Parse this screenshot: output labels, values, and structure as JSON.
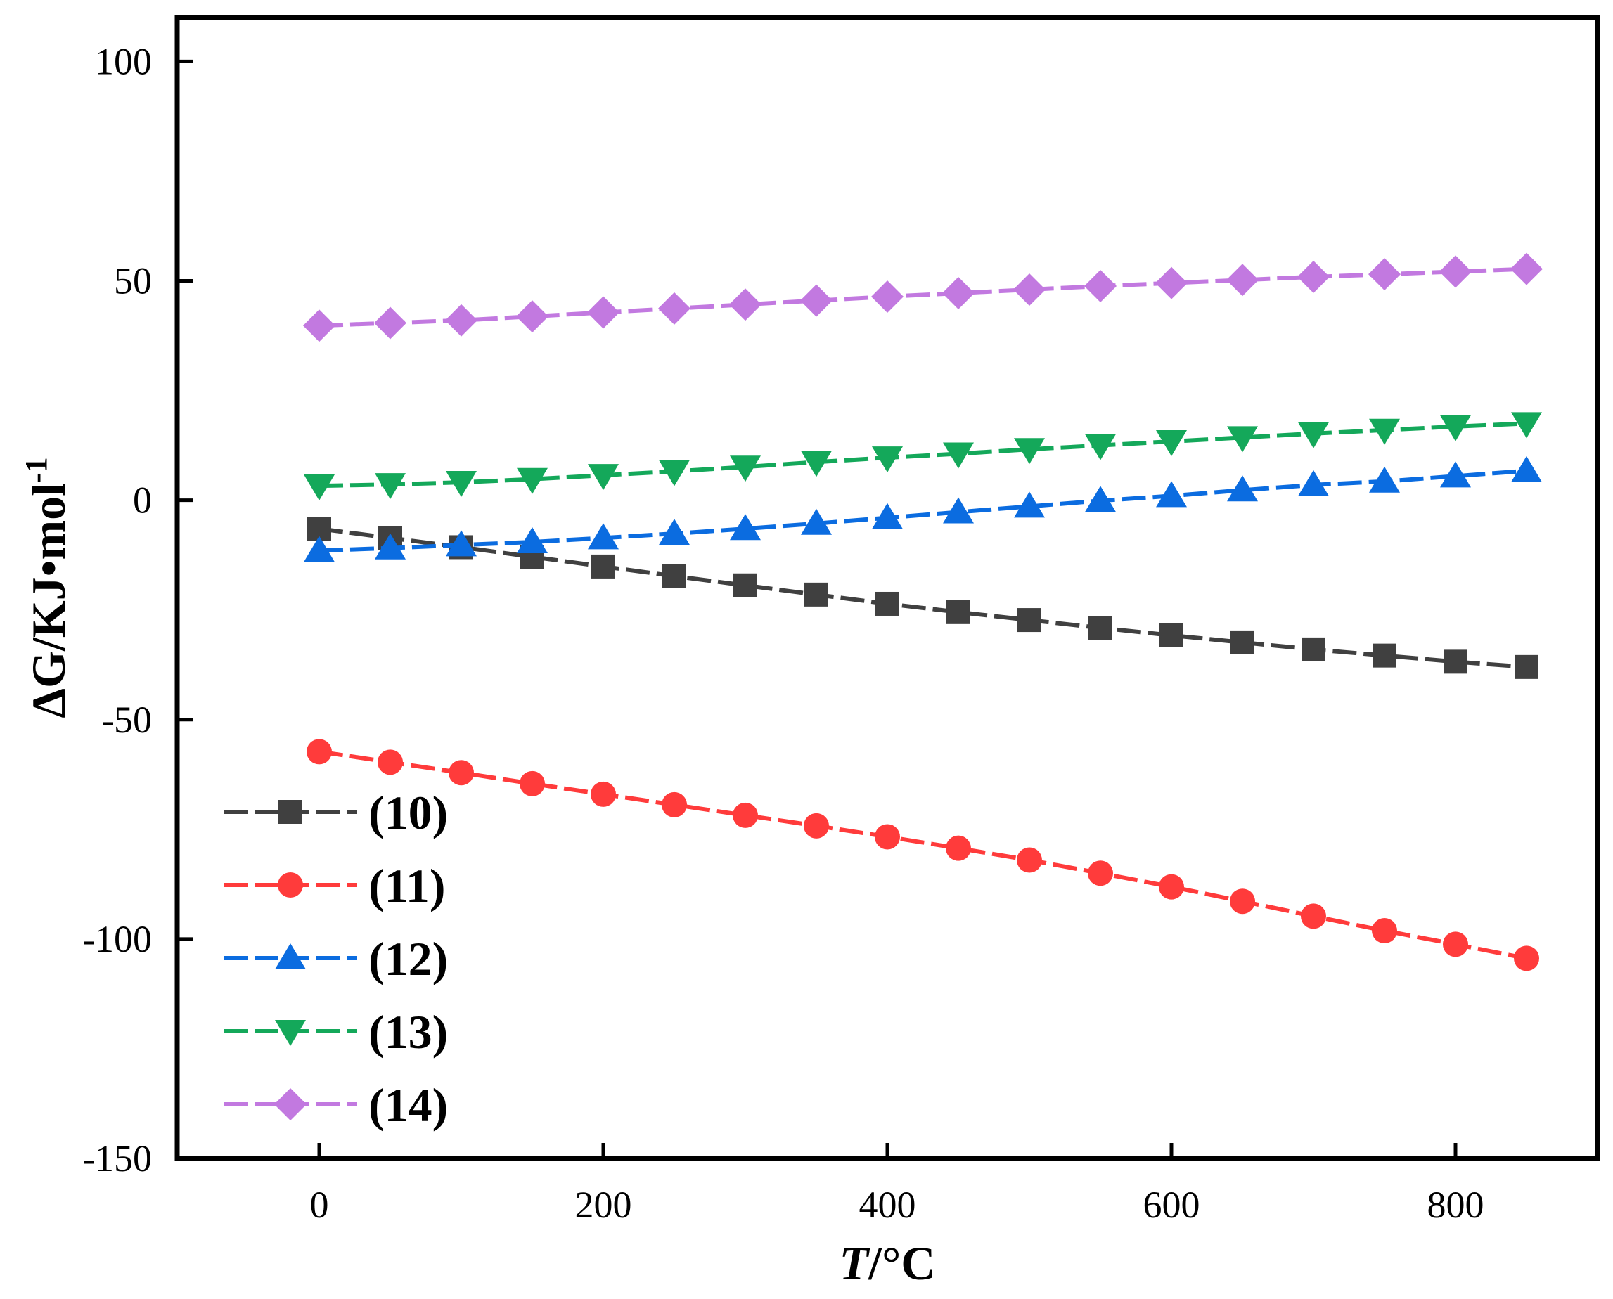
{
  "chart_data": {
    "type": "line",
    "title": "",
    "xlabel_italic": "T",
    "xlabel_rest": "/°C",
    "ylabel_main": "ΔG/KJ•mol",
    "ylabel_sup": "-1",
    "xlim": [
      -100,
      900
    ],
    "ylim": [
      -150,
      110
    ],
    "xticks": [
      0,
      200,
      400,
      600,
      800
    ],
    "yticks": [
      -150,
      -100,
      -50,
      0,
      50,
      100
    ],
    "x": [
      0,
      50,
      100,
      150,
      200,
      250,
      300,
      350,
      400,
      450,
      500,
      550,
      600,
      650,
      700,
      750,
      800,
      850
    ],
    "legend_position": "bottom-left",
    "series": [
      {
        "name": "(10)",
        "color": "#404040",
        "marker": "square",
        "values": [
          -6.5,
          -8.6,
          -10.7,
          -12.9,
          -15.1,
          -17.3,
          -19.4,
          -21.5,
          -23.6,
          -25.5,
          -27.3,
          -29.1,
          -30.8,
          -32.4,
          -34.0,
          -35.4,
          -36.8,
          -38.0
        ]
      },
      {
        "name": "(11)",
        "color": "#ff3b3b",
        "marker": "circle",
        "values": [
          -57.3,
          -59.7,
          -62.1,
          -64.6,
          -67.0,
          -69.4,
          -71.8,
          -74.2,
          -76.7,
          -79.3,
          -82.0,
          -85.0,
          -88.1,
          -91.4,
          -94.8,
          -98.1,
          -101.2,
          -104.4
        ]
      },
      {
        "name": "(12)",
        "color": "#0b6ce0",
        "marker": "triangle-up",
        "values": [
          -11.5,
          -10.9,
          -10.2,
          -9.5,
          -8.6,
          -7.6,
          -6.5,
          -5.3,
          -4.0,
          -2.7,
          -1.4,
          -0.1,
          1.0,
          2.3,
          3.5,
          4.3,
          5.5,
          6.7
        ]
      },
      {
        "name": "(13)",
        "color": "#14a85a",
        "marker": "triangle-down",
        "values": [
          3.3,
          3.6,
          4.1,
          4.8,
          5.7,
          6.6,
          7.6,
          8.7,
          9.7,
          10.6,
          11.6,
          12.5,
          13.4,
          14.3,
          15.2,
          16.0,
          16.8,
          17.5
        ]
      },
      {
        "name": "(14)",
        "color": "#c279e0",
        "marker": "diamond",
        "values": [
          39.8,
          40.4,
          41.0,
          41.9,
          42.8,
          43.7,
          44.6,
          45.5,
          46.4,
          47.2,
          48.0,
          48.8,
          49.5,
          50.2,
          50.9,
          51.5,
          52.1,
          52.7
        ]
      }
    ]
  }
}
